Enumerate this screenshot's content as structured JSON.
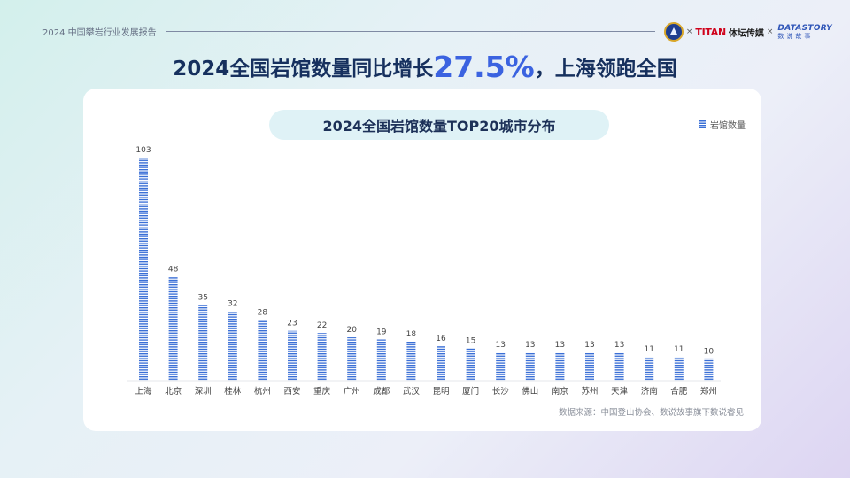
{
  "header": {
    "report_label": "2024 中国攀岩行业发展报告",
    "logos": {
      "times_1": "×",
      "titan_en": "TITAN",
      "titan_cn": "体坛传媒",
      "times_2": "×",
      "datastory_en": "DATASTORY",
      "datastory_cn": "数说故事"
    }
  },
  "headline": {
    "prefix": "2024全国岩馆数量同比增长",
    "highlight": "27.5%",
    "suffix": "，上海领跑全国"
  },
  "chart_data": {
    "type": "bar",
    "title": "2024全国岩馆数量TOP20城市分布",
    "categories": [
      "上海",
      "北京",
      "深圳",
      "桂林",
      "杭州",
      "西安",
      "重庆",
      "广州",
      "成都",
      "武汉",
      "昆明",
      "厦门",
      "长沙",
      "佛山",
      "南京",
      "苏州",
      "天津",
      "济南",
      "合肥",
      "郑州"
    ],
    "series": [
      {
        "name": "岩馆数量",
        "values": [
          103,
          48,
          35,
          32,
          28,
          23,
          22,
          20,
          19,
          18,
          16,
          15,
          13,
          13,
          13,
          13,
          13,
          11,
          11,
          10
        ]
      }
    ],
    "ylim": [
      0,
      103
    ],
    "grid": false,
    "legend_position": "top-right",
    "bar_color": "#3a6fd6",
    "data_labels": true
  },
  "source_note": "数据来源：中国登山协会、数说故事旗下数说睿见",
  "colors": {
    "headline": "#16305e",
    "highlight": "#3b63e0",
    "bar": "#3a6fd6",
    "pill_bg": "#dff2f6"
  }
}
